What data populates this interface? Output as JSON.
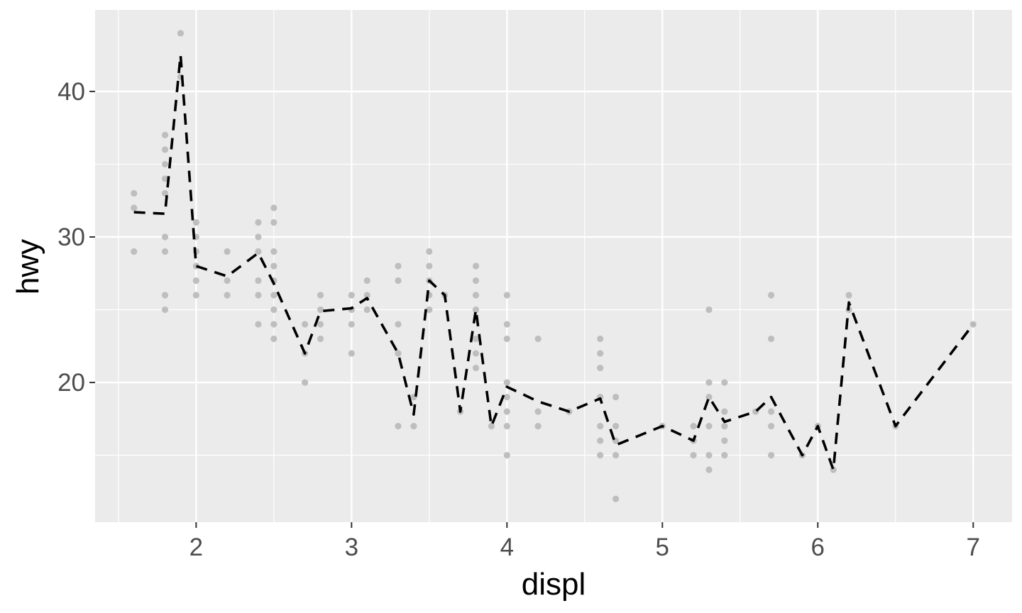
{
  "chart_data": {
    "type": "scatter",
    "xlabel": "displ",
    "ylabel": "hwy",
    "xlim": [
      1.35,
      7.25
    ],
    "ylim": [
      10.4,
      45.6
    ],
    "x_major_ticks": [
      2,
      3,
      4,
      5,
      6,
      7
    ],
    "x_minor_ticks": [
      1.5,
      2.5,
      3.5,
      4.5,
      5.5,
      6.5
    ],
    "y_major_ticks": [
      20,
      30,
      40
    ],
    "y_minor_ticks": [
      15,
      25,
      35
    ],
    "grid": true,
    "legend": "none",
    "colors": {
      "panel": "#ebebeb",
      "grid": "#ffffff",
      "points": "#bebebe",
      "line": "#000000",
      "tick_text": "#4d4d4d"
    },
    "points": [
      [
        1.6,
        33
      ],
      [
        1.6,
        32
      ],
      [
        1.6,
        29
      ],
      [
        1.8,
        37
      ],
      [
        1.8,
        36
      ],
      [
        1.8,
        35
      ],
      [
        1.8,
        34
      ],
      [
        1.8,
        33
      ],
      [
        1.8,
        30
      ],
      [
        1.8,
        29
      ],
      [
        1.8,
        26
      ],
      [
        1.8,
        25
      ],
      [
        1.9,
        44
      ],
      [
        1.9,
        41
      ],
      [
        2.0,
        31
      ],
      [
        2.0,
        30
      ],
      [
        2.0,
        29
      ],
      [
        2.0,
        28
      ],
      [
        2.0,
        27
      ],
      [
        2.0,
        26
      ],
      [
        2.2,
        29
      ],
      [
        2.2,
        27
      ],
      [
        2.2,
        26
      ],
      [
        2.4,
        31
      ],
      [
        2.4,
        30
      ],
      [
        2.4,
        29
      ],
      [
        2.4,
        27
      ],
      [
        2.4,
        26
      ],
      [
        2.4,
        24
      ],
      [
        2.5,
        32
      ],
      [
        2.5,
        31
      ],
      [
        2.5,
        29
      ],
      [
        2.5,
        28
      ],
      [
        2.5,
        27
      ],
      [
        2.5,
        26
      ],
      [
        2.5,
        25
      ],
      [
        2.5,
        24
      ],
      [
        2.5,
        23
      ],
      [
        2.7,
        24
      ],
      [
        2.7,
        22
      ],
      [
        2.7,
        20
      ],
      [
        2.8,
        26
      ],
      [
        2.8,
        25
      ],
      [
        2.8,
        24
      ],
      [
        2.8,
        23
      ],
      [
        3.0,
        26
      ],
      [
        3.0,
        25
      ],
      [
        3.0,
        24
      ],
      [
        3.0,
        22
      ],
      [
        3.1,
        27
      ],
      [
        3.1,
        26
      ],
      [
        3.1,
        25
      ],
      [
        3.3,
        28
      ],
      [
        3.3,
        27
      ],
      [
        3.3,
        24
      ],
      [
        3.3,
        22
      ],
      [
        3.3,
        17
      ],
      [
        3.4,
        19
      ],
      [
        3.4,
        17
      ],
      [
        3.5,
        29
      ],
      [
        3.5,
        28
      ],
      [
        3.5,
        27
      ],
      [
        3.5,
        26
      ],
      [
        3.5,
        25
      ],
      [
        3.6,
        26
      ],
      [
        3.7,
        18
      ],
      [
        3.8,
        28
      ],
      [
        3.8,
        27
      ],
      [
        3.8,
        26
      ],
      [
        3.8,
        25
      ],
      [
        3.8,
        23
      ],
      [
        3.8,
        22
      ],
      [
        3.8,
        21
      ],
      [
        3.9,
        17
      ],
      [
        4.0,
        26
      ],
      [
        4.0,
        24
      ],
      [
        4.0,
        23
      ],
      [
        4.0,
        20
      ],
      [
        4.0,
        19
      ],
      [
        4.0,
        18
      ],
      [
        4.0,
        17
      ],
      [
        4.0,
        15
      ],
      [
        4.2,
        23
      ],
      [
        4.2,
        18
      ],
      [
        4.2,
        17
      ],
      [
        4.4,
        18
      ],
      [
        4.6,
        23
      ],
      [
        4.6,
        22
      ],
      [
        4.6,
        21
      ],
      [
        4.6,
        19
      ],
      [
        4.6,
        17
      ],
      [
        4.6,
        16
      ],
      [
        4.6,
        15
      ],
      [
        4.7,
        19
      ],
      [
        4.7,
        17
      ],
      [
        4.7,
        16
      ],
      [
        4.7,
        15
      ],
      [
        4.7,
        12
      ],
      [
        5.0,
        17
      ],
      [
        5.2,
        17
      ],
      [
        5.2,
        16
      ],
      [
        5.2,
        15
      ],
      [
        5.3,
        25
      ],
      [
        5.3,
        20
      ],
      [
        5.3,
        19
      ],
      [
        5.3,
        17
      ],
      [
        5.3,
        15
      ],
      [
        5.3,
        14
      ],
      [
        5.4,
        20
      ],
      [
        5.4,
        18
      ],
      [
        5.4,
        17
      ],
      [
        5.4,
        16
      ],
      [
        5.4,
        15
      ],
      [
        5.6,
        18
      ],
      [
        5.7,
        26
      ],
      [
        5.7,
        23
      ],
      [
        5.7,
        18
      ],
      [
        5.7,
        17
      ],
      [
        5.7,
        15
      ],
      [
        5.9,
        15
      ],
      [
        6.0,
        17
      ],
      [
        6.1,
        14
      ],
      [
        6.2,
        26
      ],
      [
        6.2,
        25
      ],
      [
        6.5,
        17
      ],
      [
        7.0,
        24
      ]
    ],
    "line": {
      "style": "dashed",
      "x": [
        1.6,
        1.8,
        1.9,
        2.0,
        2.2,
        2.4,
        2.5,
        2.7,
        2.8,
        3.0,
        3.1,
        3.3,
        3.4,
        3.5,
        3.6,
        3.7,
        3.8,
        3.9,
        4.0,
        4.2,
        4.4,
        4.6,
        4.7,
        5.0,
        5.2,
        5.3,
        5.4,
        5.6,
        5.7,
        5.9,
        6.0,
        6.1,
        6.2,
        6.5,
        7.0
      ],
      "y": [
        31.7,
        31.6,
        42.5,
        28.0,
        27.3,
        28.9,
        26.8,
        22.0,
        24.9,
        25.1,
        25.8,
        22.0,
        17.8,
        27.0,
        26.0,
        18.0,
        25.0,
        17.0,
        19.7,
        18.7,
        18.0,
        18.9,
        15.7,
        17.0,
        16.0,
        19.0,
        17.3,
        18.0,
        19.0,
        15.0,
        17.0,
        14.0,
        25.5,
        17.0,
        24.0
      ]
    }
  }
}
